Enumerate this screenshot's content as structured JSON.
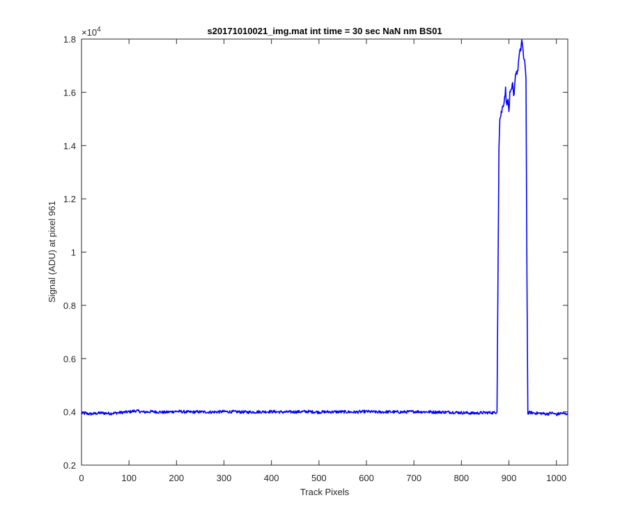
{
  "chart_data": {
    "type": "line",
    "title": "s20171010021_img.mat int time = 30 sec  NaN nm BS01",
    "xlabel": "Track Pixels",
    "ylabel": "Signal (ADU) at pixel 961",
    "xlim": [
      0,
      1024
    ],
    "ylim": [
      2000,
      18000
    ],
    "y_exponent_label": "×10",
    "y_exponent_power": "4",
    "x_ticks": [
      {
        "value": 0,
        "label": "0"
      },
      {
        "value": 100,
        "label": "100"
      },
      {
        "value": 200,
        "label": "200"
      },
      {
        "value": 300,
        "label": "300"
      },
      {
        "value": 400,
        "label": "400"
      },
      {
        "value": 500,
        "label": "500"
      },
      {
        "value": 600,
        "label": "600"
      },
      {
        "value": 700,
        "label": "700"
      },
      {
        "value": 800,
        "label": "800"
      },
      {
        "value": 900,
        "label": "900"
      },
      {
        "value": 1000,
        "label": "1000"
      }
    ],
    "y_ticks": [
      {
        "value": 2000,
        "label": "0.2"
      },
      {
        "value": 4000,
        "label": "0.4"
      },
      {
        "value": 6000,
        "label": "0.6"
      },
      {
        "value": 8000,
        "label": "0.8"
      },
      {
        "value": 10000,
        "label": "1"
      },
      {
        "value": 12000,
        "label": "1.2"
      },
      {
        "value": 14000,
        "label": "1.4"
      },
      {
        "value": 16000,
        "label": "1.6"
      },
      {
        "value": 18000,
        "label": "1.8"
      }
    ],
    "grid": false,
    "line_color": "#0000ff",
    "axis_color": "#262626",
    "series": [
      {
        "x": [
          0,
          20,
          40,
          60,
          80,
          100,
          115,
          130,
          150,
          175,
          200,
          225,
          250,
          275,
          300,
          325,
          350,
          375,
          400,
          425,
          450,
          475,
          500,
          525,
          550,
          575,
          600,
          625,
          650,
          675,
          700,
          725,
          750,
          775,
          800,
          825,
          850,
          870,
          875,
          877,
          879,
          881,
          885,
          890,
          893,
          895,
          897,
          900,
          902,
          905,
          908,
          910,
          913,
          915,
          918,
          920,
          922,
          925,
          927,
          929,
          931,
          933,
          936,
          938,
          940,
          942,
          944,
          950,
          960,
          970,
          980,
          990,
          1000,
          1010,
          1020,
          1024
        ],
        "y": [
          3950,
          3920,
          3960,
          3940,
          3970,
          4000,
          4040,
          3990,
          4010,
          3980,
          4020,
          3990,
          4000,
          3990,
          4010,
          4000,
          3990,
          4000,
          4010,
          3990,
          4000,
          4010,
          3990,
          4000,
          4000,
          3990,
          4010,
          3990,
          4000,
          3990,
          4010,
          4000,
          3990,
          3990,
          3970,
          3950,
          3970,
          3970,
          4000,
          9000,
          14000,
          15000,
          15300,
          15700,
          16100,
          15500,
          15800,
          15300,
          15900,
          16000,
          16300,
          15800,
          16500,
          16800,
          16700,
          17100,
          17400,
          17600,
          18000,
          17700,
          17200,
          17300,
          16500,
          9000,
          3970,
          3950,
          3980,
          3960,
          3950,
          3940,
          3920,
          3960,
          3900,
          3950,
          3920,
          3950
        ]
      }
    ]
  }
}
